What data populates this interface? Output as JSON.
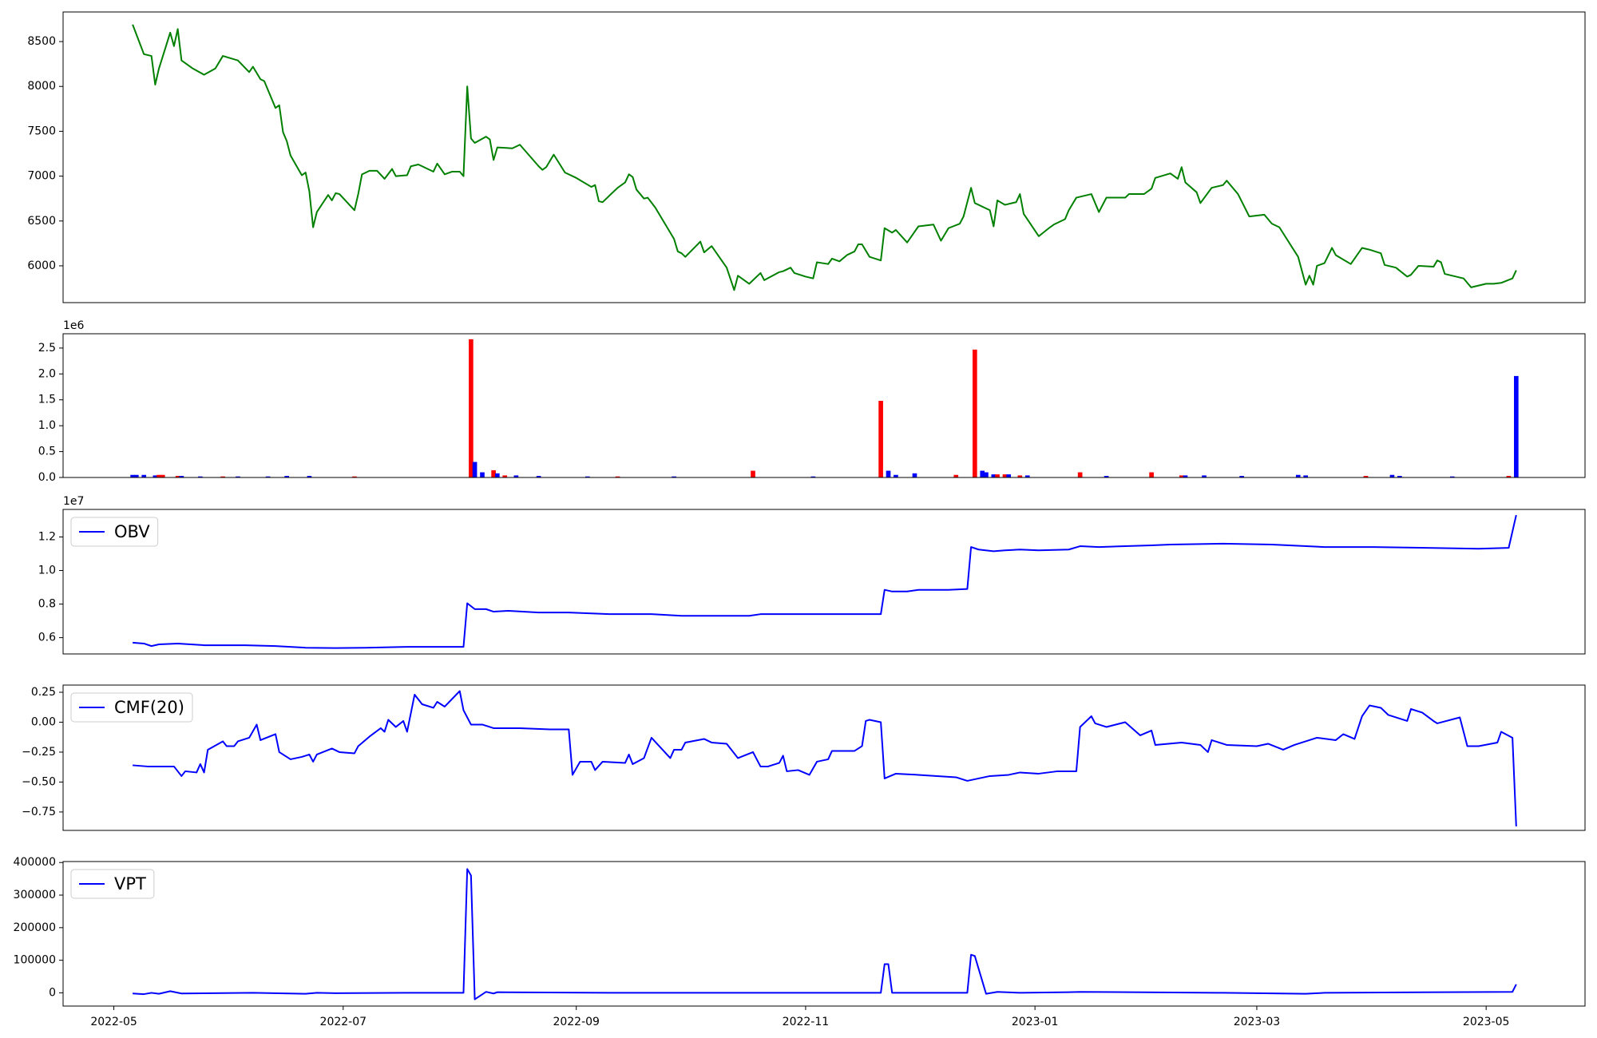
{
  "chart_data": [
    {
      "type": "line",
      "xlim": [
        -13.5,
        391.3
      ],
      "ylim": [
        5590,
        8830
      ],
      "yticks": [
        6000,
        6500,
        7000,
        7500,
        8000,
        8500
      ],
      "x": [
        5,
        8,
        10,
        11,
        12,
        15,
        16,
        17,
        18,
        21,
        24,
        27,
        29,
        33,
        36,
        37,
        39,
        40,
        43,
        44,
        45,
        46,
        47,
        50,
        51,
        52,
        53,
        54,
        57,
        58,
        59,
        60,
        64,
        65,
        66,
        68,
        70,
        72,
        74,
        75,
        78,
        79,
        81,
        85,
        86,
        88,
        90,
        92,
        93,
        94,
        95,
        96,
        99,
        100,
        101,
        102,
        106,
        108,
        113,
        114,
        115,
        117,
        120,
        123,
        127,
        128,
        129,
        130,
        134,
        136,
        137,
        138,
        139,
        141,
        142,
        144,
        149,
        150,
        151,
        152,
        156,
        157,
        159,
        163,
        165,
        166,
        169,
        172,
        173,
        177,
        178,
        180,
        181,
        184,
        186,
        187,
        190,
        191,
        193,
        195,
        197,
        198,
        199,
        201,
        204,
        205,
        207,
        208,
        211,
        214,
        218,
        220,
        222,
        225,
        226,
        228,
        229,
        233,
        234,
        235,
        237,
        240,
        241,
        242,
        246,
        249,
        250,
        253,
        254,
        256,
        260,
        262,
        264,
        269,
        270,
        274,
        276,
        277,
        281,
        283,
        284,
        285,
        288,
        289,
        292,
        295,
        296,
        299,
        302,
        306,
        308,
        310,
        315,
        317,
        318,
        319,
        320,
        322,
        324,
        325,
        329,
        332,
        334,
        337,
        338,
        341,
        344,
        345,
        347,
        351,
        352,
        353,
        354,
        359,
        361,
        365,
        367,
        369,
        372,
        373
      ],
      "series": [
        {
          "color": "#008000",
          "values": [
            8690,
            8360,
            8340,
            8020,
            8200,
            8600,
            8450,
            8640,
            8290,
            8200,
            8130,
            8200,
            8340,
            8290,
            8160,
            8220,
            8080,
            8060,
            7760,
            7790,
            7490,
            7390,
            7230,
            7010,
            7040,
            6830,
            6430,
            6600,
            6790,
            6730,
            6810,
            6800,
            6620,
            6800,
            7020,
            7060,
            7060,
            6970,
            7080,
            7000,
            7010,
            7110,
            7130,
            7050,
            7140,
            7020,
            7050,
            7050,
            7000,
            8000,
            7420,
            7370,
            7440,
            7410,
            7180,
            7320,
            7310,
            7350,
            7110,
            7070,
            7100,
            7240,
            7040,
            6980,
            6880,
            6900,
            6720,
            6710,
            6870,
            6930,
            7020,
            6990,
            6850,
            6750,
            6760,
            6650,
            6300,
            6160,
            6140,
            6100,
            6270,
            6150,
            6220,
            5980,
            5730,
            5890,
            5800,
            5920,
            5840,
            5930,
            5940,
            5980,
            5920,
            5880,
            5860,
            6040,
            6020,
            6080,
            6050,
            6120,
            6160,
            6240,
            6240,
            6100,
            6060,
            6420,
            6370,
            6400,
            6260,
            6440,
            6460,
            6280,
            6420,
            6470,
            6550,
            6870,
            6700,
            6620,
            6440,
            6730,
            6680,
            6710,
            6800,
            6580,
            6330,
            6430,
            6460,
            6520,
            6620,
            6760,
            6800,
            6600,
            6760,
            6760,
            6800,
            6800,
            6860,
            6980,
            7030,
            6970,
            7100,
            6930,
            6820,
            6700,
            6870,
            6900,
            6950,
            6800,
            6550,
            6570,
            6470,
            6430,
            6100,
            5790,
            5890,
            5790,
            6000,
            6030,
            6200,
            6120,
            6020,
            6200,
            6180,
            6140,
            6010,
            5980,
            5880,
            5900,
            6000,
            5990,
            6060,
            6040,
            5910,
            5860,
            5760,
            5800,
            5800,
            5810,
            5860,
            5950
          ]
        }
      ]
    },
    {
      "type": "bar",
      "xlim": [
        -13.5,
        391.3
      ],
      "ylim": [
        0,
        2776000
      ],
      "offset_text": "1e6",
      "yticks": [
        {
          "value": 0,
          "label": "0.0"
        },
        {
          "value": 500000,
          "label": "0.5"
        },
        {
          "value": 1000000,
          "label": "1.0"
        },
        {
          "value": 1500000,
          "label": "1.5"
        },
        {
          "value": 2000000,
          "label": "2.0"
        },
        {
          "value": 2500000,
          "label": "2.5"
        }
      ],
      "x": [
        5,
        6,
        8,
        11,
        12,
        13,
        17,
        18,
        23,
        29,
        33,
        41,
        46,
        52,
        64,
        95,
        96,
        98,
        101,
        102,
        104,
        107,
        113,
        126,
        134,
        149,
        170,
        186,
        204,
        206,
        208,
        213,
        224,
        229,
        231,
        232,
        234,
        235,
        237,
        238,
        241,
        243,
        257,
        264,
        276,
        284,
        285,
        290,
        300,
        315,
        317,
        333,
        340,
        342,
        356,
        371,
        373
      ],
      "values": [
        50000,
        50000,
        50000,
        40000,
        50000,
        50000,
        30000,
        30000,
        20000,
        20000,
        20000,
        20000,
        30000,
        30000,
        20000,
        2670000,
        300000,
        100000,
        140000,
        80000,
        40000,
        40000,
        30000,
        20000,
        20000,
        20000,
        130000,
        20000,
        1480000,
        130000,
        50000,
        80000,
        50000,
        2470000,
        130000,
        100000,
        60000,
        60000,
        60000,
        60000,
        40000,
        40000,
        100000,
        30000,
        100000,
        40000,
        40000,
        40000,
        30000,
        50000,
        40000,
        30000,
        50000,
        30000,
        20000,
        30000,
        1960000
      ],
      "colors": [
        "blue",
        "blue",
        "blue",
        "blue",
        "red",
        "red",
        "red",
        "blue",
        "blue",
        "red",
        "blue",
        "blue",
        "blue",
        "blue",
        "red",
        "red",
        "blue",
        "blue",
        "red",
        "blue",
        "red",
        "blue",
        "blue",
        "blue",
        "red",
        "blue",
        "red",
        "blue",
        "red",
        "blue",
        "blue",
        "blue",
        "red",
        "red",
        "blue",
        "blue",
        "blue",
        "red",
        "red",
        "blue",
        "red",
        "blue",
        "red",
        "blue",
        "red",
        "red",
        "blue",
        "blue",
        "blue",
        "blue",
        "blue",
        "red",
        "blue",
        "blue",
        "blue",
        "red",
        "blue"
      ]
    },
    {
      "type": "line",
      "xlim": [
        -13.5,
        391.3
      ],
      "ylim": [
        5030000,
        13640000
      ],
      "offset_text": "1e7",
      "legend": "upper left",
      "yticks": [
        {
          "value": 6000000,
          "label": "0.6"
        },
        {
          "value": 8000000,
          "label": "0.8"
        },
        {
          "value": 10000000,
          "label": "1.0"
        },
        {
          "value": 12000000,
          "label": "1.2"
        }
      ],
      "x": [
        5,
        8,
        10,
        12,
        17,
        24,
        35,
        43,
        51,
        59,
        67,
        78,
        93,
        94,
        96,
        99,
        101,
        105,
        113,
        121,
        132,
        143,
        151,
        159,
        169,
        172,
        186,
        197,
        204,
        205,
        207,
        211,
        214,
        222,
        227,
        228,
        230,
        234,
        237,
        241,
        246,
        254,
        257,
        262,
        276,
        281,
        295,
        308,
        322,
        335,
        349,
        363,
        371,
        373
      ],
      "series": [
        {
          "name": "OBV",
          "color": "#0000ff",
          "values": [
            5700000,
            5650000,
            5500000,
            5600000,
            5650000,
            5550000,
            5550000,
            5500000,
            5400000,
            5380000,
            5400000,
            5450000,
            5450000,
            8050000,
            7700000,
            7700000,
            7550000,
            7600000,
            7500000,
            7500000,
            7400000,
            7400000,
            7300000,
            7300000,
            7300000,
            7400000,
            7400000,
            7400000,
            7400000,
            8850000,
            8750000,
            8750000,
            8850000,
            8850000,
            8900000,
            11400000,
            11250000,
            11150000,
            11200000,
            11250000,
            11200000,
            11250000,
            11450000,
            11400000,
            11500000,
            11550000,
            11600000,
            11550000,
            11400000,
            11400000,
            11350000,
            11300000,
            11350000,
            13300000
          ]
        }
      ]
    },
    {
      "type": "line",
      "xlim": [
        -13.5,
        391.3
      ],
      "ylim": [
        -0.904,
        0.31
      ],
      "legend": "upper left",
      "yticks": [
        {
          "value": -0.75,
          "label": "−0.75"
        },
        {
          "value": -0.5,
          "label": "−0.50"
        },
        {
          "value": -0.25,
          "label": "−0.25"
        },
        {
          "value": 0,
          "label": "0.00"
        },
        0.25
      ],
      "x": [
        5,
        9,
        13,
        16,
        18,
        19,
        22,
        23,
        24,
        25,
        29,
        30,
        32,
        33,
        36,
        38,
        39,
        43,
        44,
        47,
        50,
        52,
        53,
        54,
        58,
        60,
        64,
        65,
        68,
        71,
        72,
        73,
        75,
        77,
        78,
        80,
        82,
        85,
        86,
        88,
        92,
        93,
        95,
        98,
        101,
        108,
        116,
        121,
        122,
        124,
        127,
        128,
        130,
        136,
        137,
        138,
        141,
        143,
        148,
        149,
        151,
        152,
        157,
        159,
        163,
        166,
        170,
        172,
        174,
        177,
        178,
        179,
        182,
        185,
        187,
        190,
        191,
        193,
        197,
        199,
        200,
        201,
        204,
        205,
        208,
        214,
        219,
        224,
        227,
        230,
        233,
        238,
        241,
        246,
        251,
        256,
        257,
        260,
        261,
        264,
        269,
        273,
        276,
        277,
        284,
        289,
        291,
        292,
        296,
        304,
        307,
        311,
        314,
        320,
        325,
        327,
        330,
        332,
        334,
        337,
        339,
        344,
        345,
        348,
        351,
        352,
        358,
        360,
        363,
        368,
        369,
        372,
        373
      ],
      "series": [
        {
          "name": "CMF(20)",
          "color": "#0000ff",
          "values": [
            -0.36,
            -0.37,
            -0.37,
            -0.37,
            -0.45,
            -0.41,
            -0.42,
            -0.35,
            -0.42,
            -0.23,
            -0.16,
            -0.2,
            -0.2,
            -0.16,
            -0.13,
            -0.02,
            -0.15,
            -0.1,
            -0.25,
            -0.31,
            -0.29,
            -0.27,
            -0.33,
            -0.27,
            -0.22,
            -0.25,
            -0.26,
            -0.2,
            -0.12,
            -0.05,
            -0.08,
            0.02,
            -0.04,
            0.01,
            -0.08,
            0.23,
            0.15,
            0.12,
            0.17,
            0.13,
            0.26,
            0.1,
            -0.02,
            -0.02,
            -0.05,
            -0.05,
            -0.06,
            -0.06,
            -0.44,
            -0.33,
            -0.33,
            -0.4,
            -0.33,
            -0.34,
            -0.27,
            -0.35,
            -0.3,
            -0.13,
            -0.3,
            -0.23,
            -0.23,
            -0.17,
            -0.14,
            -0.17,
            -0.18,
            -0.3,
            -0.25,
            -0.37,
            -0.37,
            -0.34,
            -0.28,
            -0.41,
            -0.4,
            -0.44,
            -0.33,
            -0.31,
            -0.24,
            -0.24,
            -0.24,
            -0.2,
            0.01,
            0.02,
            0,
            -0.47,
            -0.43,
            -0.44,
            -0.45,
            -0.46,
            -0.49,
            -0.47,
            -0.45,
            -0.44,
            -0.42,
            -0.43,
            -0.41,
            -0.41,
            -0.04,
            0.05,
            -0.01,
            -0.04,
            0,
            -0.11,
            -0.07,
            -0.19,
            -0.17,
            -0.19,
            -0.25,
            -0.15,
            -0.19,
            -0.2,
            -0.18,
            -0.23,
            -0.19,
            -0.13,
            -0.15,
            -0.1,
            -0.14,
            0.05,
            0.14,
            0.12,
            0.06,
            0.01,
            0.11,
            0.08,
            0.01,
            -0.01,
            0.04,
            -0.2,
            -0.2,
            -0.17,
            -0.08,
            -0.13,
            -0.87
          ]
        }
      ]
    },
    {
      "type": "line",
      "xlim": [
        -13.5,
        391.3
      ],
      "ylim": [
        -40600,
        403000
      ],
      "legend": "upper left",
      "yticks": [
        0,
        100000,
        200000,
        300000,
        400000
      ],
      "xticks": [
        {
          "value": 0,
          "label": "2022-05"
        },
        {
          "value": 61,
          "label": "2022-07"
        },
        {
          "value": 123,
          "label": "2022-09"
        },
        {
          "value": 184,
          "label": "2022-11"
        },
        {
          "value": 245,
          "label": "2023-01"
        },
        {
          "value": 304,
          "label": "2023-03"
        },
        {
          "value": 365,
          "label": "2023-05"
        }
      ],
      "x": [
        5,
        8,
        10,
        12,
        15,
        18,
        37,
        51,
        54,
        59,
        78,
        93,
        94,
        95,
        96,
        99,
        101,
        102,
        132,
        159,
        186,
        204,
        205,
        206,
        207,
        214,
        227,
        228,
        229,
        232,
        235,
        241,
        254,
        257,
        295,
        317,
        322,
        372,
        373
      ],
      "series": [
        {
          "name": "VPT",
          "color": "#0000ff",
          "values": [
            -2000,
            -4000,
            0,
            -3000,
            5000,
            -2000,
            0,
            -3000,
            0,
            -1000,
            0,
            0,
            380000,
            360000,
            -20000,
            3000,
            -2000,
            2000,
            0,
            0,
            0,
            0,
            88000,
            88000,
            0,
            0,
            0,
            117000,
            113000,
            -3000,
            3000,
            0,
            2000,
            3000,
            0,
            -3000,
            0,
            3000,
            26000
          ]
        }
      ]
    }
  ]
}
